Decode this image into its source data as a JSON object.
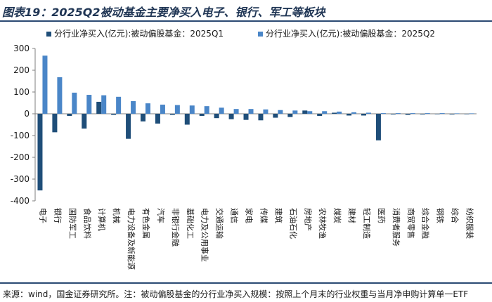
{
  "header": {
    "title": "图表19：2025Q2被动基金主要净买入电子、银行、军工等板块"
  },
  "footer": {
    "source": "来源：wind，国金证券研究所。注：被动偏股基金的分行业净买入规模：按照上个月末的行业权重与当月净申购计算单一ETF"
  },
  "colors": {
    "q1": "#1f4e79",
    "q2": "#4a86c8",
    "title": "#1f3554",
    "rule": "#2b4a73"
  },
  "chart_data": {
    "type": "bar",
    "title": "",
    "xlabel": "",
    "ylabel": "",
    "ylim": [
      -400,
      300
    ],
    "yticks": [
      -400,
      -300,
      -200,
      -100,
      0,
      100,
      200,
      300
    ],
    "grid": false,
    "legend_position": "top-left",
    "categories": [
      "电子",
      "银行",
      "国防军工",
      "食品饮料",
      "计算机",
      "机械",
      "电力设备及新能源",
      "有色金属",
      "汽车",
      "非银行金融",
      "基础化工",
      "电力及公用事业",
      "交通运输",
      "通信",
      "家电",
      "传媒",
      "建筑",
      "石油石化",
      "房地产",
      "农林牧渔",
      "煤炭",
      "建材",
      "轻工制造",
      "医药",
      "消费者服务",
      "商贸零售",
      "综合金融",
      "钢铁",
      "综合",
      "纺织服装"
    ],
    "series": [
      {
        "name": "分行业净买入(亿元):被动偏股基金：2025Q1",
        "values": [
          -352,
          -85,
          -10,
          -68,
          55,
          -5,
          -115,
          -35,
          -45,
          -5,
          -50,
          -10,
          -20,
          -25,
          -28,
          -30,
          -18,
          -15,
          15,
          -10,
          5,
          -8,
          -8,
          -122,
          -3,
          -5,
          -3,
          -2,
          -3,
          -2
        ]
      },
      {
        "name": "分行业净买入(亿元):被动偏股基金：2025Q2",
        "values": [
          267,
          168,
          97,
          87,
          85,
          78,
          58,
          48,
          42,
          40,
          38,
          35,
          28,
          22,
          22,
          20,
          17,
          15,
          12,
          12,
          10,
          7,
          5,
          3,
          3,
          3,
          3,
          3,
          2,
          2
        ]
      }
    ]
  }
}
